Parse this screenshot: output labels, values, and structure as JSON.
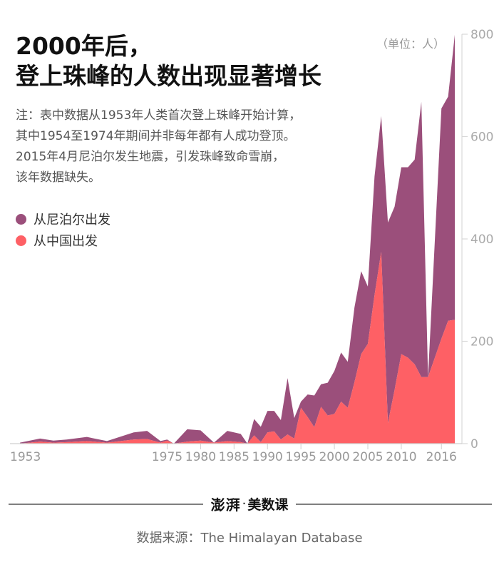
{
  "header": {
    "title_line1": "2000年后，",
    "title_line2": "登上珠峰的人数出现显著增长",
    "unit": "（单位：人）",
    "note_lines": [
      "注：表中数据从1953年人类首次登上珠峰开始计算，",
      "其中1954至1974年期间并非每年都有人成功登顶。",
      "2015年4月尼泊尔发生地震，引发珠峰致命雪崩，",
      "该年数据缺失。"
    ]
  },
  "legend": [
    {
      "label": "从尼泊尔出发",
      "color": "#9b4f7b"
    },
    {
      "label": "从中国出发",
      "color": "#fe6065"
    }
  ],
  "footer": {
    "logo_mark": "澎湃",
    "logo_dot": "·",
    "logo_name": "美数课",
    "source": "数据来源：The Himalayan Database"
  },
  "chart_data": {
    "type": "area",
    "stacked": true,
    "xlim": [
      1953,
      2018
    ],
    "ylim": [
      0,
      800
    ],
    "x_ticks": [
      1953,
      1975,
      1980,
      1985,
      1990,
      1995,
      2000,
      2005,
      2010,
      2016
    ],
    "y_ticks": [
      0,
      200,
      400,
      600,
      800
    ],
    "series": [
      {
        "name": "从中国出发",
        "color": "#fe6065",
        "points": [
          [
            1953,
            0
          ],
          [
            1956,
            4
          ],
          [
            1958,
            2
          ],
          [
            1960,
            3
          ],
          [
            1963,
            5
          ],
          [
            1966,
            2
          ],
          [
            1970,
            8
          ],
          [
            1972,
            9
          ],
          [
            1974,
            2
          ],
          [
            1975,
            6
          ],
          [
            1976,
            0
          ],
          [
            1978,
            4
          ],
          [
            1980,
            6
          ],
          [
            1982,
            2
          ],
          [
            1984,
            5
          ],
          [
            1986,
            3
          ],
          [
            1987,
            0
          ],
          [
            1988,
            16
          ],
          [
            1989,
            3
          ],
          [
            1990,
            22
          ],
          [
            1991,
            24
          ],
          [
            1992,
            8
          ],
          [
            1993,
            18
          ],
          [
            1994,
            10
          ],
          [
            1995,
            70
          ],
          [
            1996,
            52
          ],
          [
            1997,
            32
          ],
          [
            1998,
            72
          ],
          [
            1999,
            55
          ],
          [
            2000,
            58
          ],
          [
            2001,
            82
          ],
          [
            2002,
            70
          ],
          [
            2003,
            120
          ],
          [
            2004,
            175
          ],
          [
            2005,
            195
          ],
          [
            2006,
            290
          ],
          [
            2007,
            375
          ],
          [
            2008,
            40
          ],
          [
            2009,
            105
          ],
          [
            2010,
            175
          ],
          [
            2011,
            168
          ],
          [
            2012,
            155
          ],
          [
            2013,
            130
          ],
          [
            2014,
            130
          ],
          [
            2016,
            205
          ],
          [
            2017,
            240
          ],
          [
            2018,
            242
          ]
        ]
      },
      {
        "name": "从尼泊尔出发",
        "color": "#9b4f7b",
        "points": [
          [
            1953,
            2
          ],
          [
            1956,
            6
          ],
          [
            1958,
            4
          ],
          [
            1960,
            5
          ],
          [
            1963,
            8
          ],
          [
            1966,
            3
          ],
          [
            1970,
            14
          ],
          [
            1972,
            16
          ],
          [
            1974,
            3
          ],
          [
            1975,
            2
          ],
          [
            1976,
            0
          ],
          [
            1978,
            24
          ],
          [
            1980,
            20
          ],
          [
            1982,
            0
          ],
          [
            1984,
            20
          ],
          [
            1986,
            16
          ],
          [
            1987,
            0
          ],
          [
            1988,
            32
          ],
          [
            1989,
            30
          ],
          [
            1990,
            42
          ],
          [
            1991,
            40
          ],
          [
            1992,
            38
          ],
          [
            1993,
            110
          ],
          [
            1994,
            40
          ],
          [
            1995,
            12
          ],
          [
            1996,
            44
          ],
          [
            1997,
            62
          ],
          [
            1998,
            44
          ],
          [
            1999,
            64
          ],
          [
            2000,
            84
          ],
          [
            2001,
            96
          ],
          [
            2002,
            90
          ],
          [
            2003,
            146
          ],
          [
            2004,
            162
          ],
          [
            2005,
            112
          ],
          [
            2006,
            232
          ],
          [
            2007,
            265
          ],
          [
            2008,
            392
          ],
          [
            2009,
            358
          ],
          [
            2010,
            365
          ],
          [
            2011,
            372
          ],
          [
            2012,
            400
          ],
          [
            2013,
            538
          ],
          [
            2014,
            0
          ],
          [
            2016,
            450
          ],
          [
            2017,
            438
          ],
          [
            2018,
            557
          ]
        ]
      }
    ]
  }
}
